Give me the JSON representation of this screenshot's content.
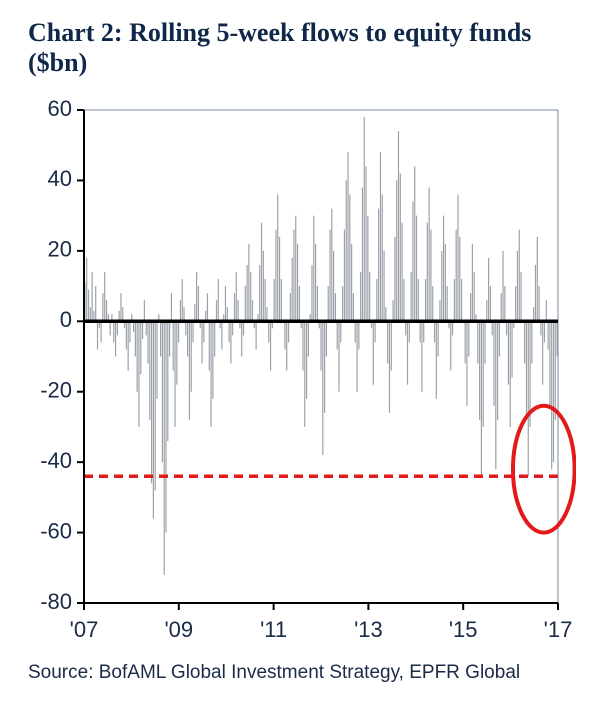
{
  "title": "Chart 2: Rolling 5-week flows to equity funds ($bn)",
  "title_fontsize": 26,
  "title_color": "#0f2748",
  "source": "Source: BofAML Global Investment Strategy, EPFR Global",
  "source_fontsize": 19,
  "source_color": "#1a2a47",
  "chart": {
    "type": "bar",
    "bar_color": "#9aa0a8",
    "bar_width": 0.65,
    "background_color": "#ffffff",
    "axis_color": "#000000",
    "axis_line_width": 2,
    "border_color": "#7a8aa0",
    "border_width": 1,
    "xlim": [
      2007,
      2017
    ],
    "ylim": [
      -80,
      60
    ],
    "ytick_step": 20,
    "yticks": [
      60,
      40,
      20,
      0,
      -20,
      -40,
      -60,
      -80
    ],
    "xticks": [
      2007,
      2009,
      2011,
      2013,
      2015,
      2017
    ],
    "xtick_labels": [
      "'07",
      "'09",
      "'11",
      "'13",
      "'15",
      "'17"
    ],
    "tick_fontsize": 22,
    "tick_color": "#1a2a47",
    "zero_line_width": 3.5,
    "dashed_line": {
      "y": -44,
      "color": "#e21a1a",
      "width": 3.5,
      "dash": "9,6"
    },
    "highlight_circle": {
      "cx_year": 2016.7,
      "cy_value": -42,
      "rx_years": 0.65,
      "ry_value": 18,
      "stroke": "#e21a1a",
      "width": 4
    },
    "values": [
      11,
      18,
      9,
      4,
      14,
      3,
      10,
      -8,
      -2,
      -6,
      8,
      14,
      6,
      2,
      -4,
      2,
      -6,
      -10,
      -4,
      3,
      8,
      4,
      -2,
      -8,
      -14,
      -6,
      2,
      -3,
      -10,
      -20,
      -30,
      -15,
      -5,
      6,
      -4,
      -12,
      -28,
      -46,
      -56,
      -48,
      -22,
      2,
      -10,
      -40,
      -72,
      -60,
      -34,
      -10,
      8,
      -14,
      -30,
      -18,
      -6,
      6,
      12,
      4,
      -4,
      -10,
      -28,
      -20,
      -6,
      5,
      14,
      10,
      -2,
      -12,
      -6,
      3,
      8,
      -14,
      -30,
      -22,
      -10,
      6,
      12,
      -2,
      -8,
      2,
      10,
      4,
      -6,
      -12,
      -4,
      8,
      14,
      6,
      -2,
      -10,
      -4,
      10,
      16,
      22,
      14,
      6,
      -2,
      -8,
      2,
      16,
      28,
      20,
      12,
      4,
      -6,
      -14,
      -2,
      12,
      26,
      36,
      24,
      12,
      0,
      -8,
      -14,
      -6,
      8,
      18,
      26,
      30,
      22,
      10,
      -2,
      -14,
      -30,
      -22,
      -10,
      2,
      16,
      30,
      22,
      10,
      -2,
      -14,
      -38,
      -26,
      -10,
      10,
      26,
      32,
      20,
      8,
      -8,
      -20,
      -6,
      10,
      26,
      40,
      48,
      36,
      22,
      8,
      -6,
      -20,
      -8,
      14,
      38,
      58,
      44,
      30,
      14,
      -2,
      -18,
      -6,
      12,
      32,
      48,
      36,
      20,
      4,
      -12,
      -26,
      -14,
      6,
      24,
      40,
      54,
      42,
      28,
      12,
      -4,
      -18,
      -6,
      14,
      34,
      44,
      30,
      12,
      -6,
      -20,
      -6,
      12,
      28,
      38,
      26,
      10,
      -6,
      -22,
      -10,
      6,
      20,
      30,
      22,
      10,
      -2,
      -14,
      -4,
      12,
      26,
      36,
      24,
      12,
      0,
      -12,
      -24,
      -10,
      8,
      22,
      14,
      2,
      -12,
      -28,
      -44,
      -30,
      -12,
      6,
      18,
      10,
      -4,
      -24,
      -42,
      -28,
      -10,
      8,
      20,
      10,
      -4,
      -18,
      -30,
      -16,
      -2,
      10,
      20,
      26,
      14,
      0,
      -12,
      -28,
      -44,
      -30,
      -12,
      4,
      16,
      24,
      10,
      -4,
      -18,
      -6,
      6,
      -8,
      -24,
      -42,
      -40,
      -28,
      -10
    ]
  }
}
